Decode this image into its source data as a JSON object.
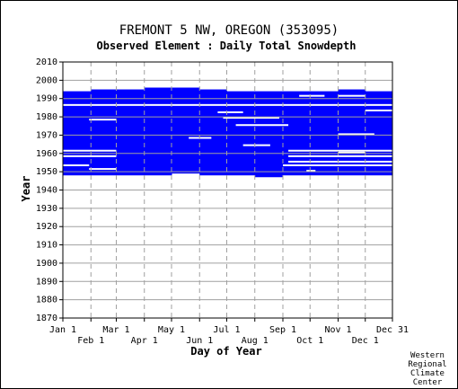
{
  "chart_data": {
    "type": "heatmap",
    "title": "FREMONT 5 NW, OREGON    (353095)",
    "subtitle": "Observed Element : Daily Total Snowdepth",
    "xlabel": "Day of Year",
    "ylabel": "Year",
    "xlim": [
      1,
      365
    ],
    "ylim": [
      1870,
      2010
    ],
    "x_ticks_top_row": [
      {
        "label": "Jan 1",
        "day": 1
      },
      {
        "label": "Mar 1",
        "day": 60
      },
      {
        "label": "May 1",
        "day": 121
      },
      {
        "label": "Jul 1",
        "day": 182
      },
      {
        "label": "Sep 1",
        "day": 244
      },
      {
        "label": "Nov 1",
        "day": 305
      },
      {
        "label": "Dec 31",
        "day": 365
      }
    ],
    "x_ticks_bottom_row": [
      {
        "label": "Feb 1",
        "day": 32
      },
      {
        "label": "Apr 1",
        "day": 91
      },
      {
        "label": "Jun 1",
        "day": 152
      },
      {
        "label": "Aug 1",
        "day": 213
      },
      {
        "label": "Oct 1",
        "day": 274
      },
      {
        "label": "Dec 1",
        "day": 335
      }
    ],
    "y_ticks": [
      1870,
      1880,
      1890,
      1900,
      1910,
      1920,
      1930,
      1940,
      1950,
      1960,
      1970,
      1980,
      1990,
      2000,
      2010
    ],
    "grid": true,
    "data_color": "#0000ff",
    "coverage": [
      {
        "start_day": 1,
        "end_day": 32,
        "year_start": 1948,
        "year_end": 1994
      },
      {
        "start_day": 32,
        "end_day": 60,
        "year_start": 1948,
        "year_end": 1995
      },
      {
        "start_day": 60,
        "end_day": 91,
        "year_start": 1948,
        "year_end": 1995
      },
      {
        "start_day": 91,
        "end_day": 121,
        "year_start": 1948,
        "year_end": 1996
      },
      {
        "start_day": 121,
        "end_day": 152,
        "year_start": 1949,
        "year_end": 1996
      },
      {
        "start_day": 152,
        "end_day": 182,
        "year_start": 1948,
        "year_end": 1995
      },
      {
        "start_day": 182,
        "end_day": 213,
        "year_start": 1948,
        "year_end": 1994
      },
      {
        "start_day": 213,
        "end_day": 244,
        "year_start": 1947,
        "year_end": 1994
      },
      {
        "start_day": 244,
        "end_day": 274,
        "year_start": 1948,
        "year_end": 1994
      },
      {
        "start_day": 274,
        "end_day": 305,
        "year_start": 1948,
        "year_end": 1994
      },
      {
        "start_day": 305,
        "end_day": 335,
        "year_start": 1948,
        "year_end": 1995
      },
      {
        "start_day": 335,
        "end_day": 365,
        "year_start": 1948,
        "year_end": 1994
      }
    ],
    "gaps": [
      {
        "year": 1986,
        "start_day": 1,
        "end_day": 365
      },
      {
        "year": 1978,
        "start_day": 30,
        "end_day": 60
      },
      {
        "year": 1968,
        "start_day": 140,
        "end_day": 165
      },
      {
        "year": 1975,
        "start_day": 192,
        "end_day": 250
      },
      {
        "year": 1979,
        "start_day": 178,
        "end_day": 240
      },
      {
        "year": 1982,
        "start_day": 172,
        "end_day": 200
      },
      {
        "year": 1991,
        "start_day": 262,
        "end_day": 290
      },
      {
        "year": 1964,
        "start_day": 200,
        "end_day": 230
      },
      {
        "year": 1961,
        "start_day": 1,
        "end_day": 60
      },
      {
        "year": 1958,
        "start_day": 1,
        "end_day": 60
      },
      {
        "year": 1953,
        "start_day": 1,
        "end_day": 30
      },
      {
        "year": 1951,
        "start_day": 30,
        "end_day": 60
      },
      {
        "year": 1955,
        "start_day": 250,
        "end_day": 365
      },
      {
        "year": 1958,
        "start_day": 250,
        "end_day": 365
      },
      {
        "year": 1961,
        "start_day": 250,
        "end_day": 365
      },
      {
        "year": 1970,
        "start_day": 305,
        "end_day": 345
      },
      {
        "year": 1960,
        "start_day": 305,
        "end_day": 335
      },
      {
        "year": 1953,
        "start_day": 244,
        "end_day": 365
      },
      {
        "year": 1950,
        "start_day": 270,
        "end_day": 280
      },
      {
        "year": 1983,
        "start_day": 335,
        "end_day": 365
      },
      {
        "year": 1991,
        "start_day": 305,
        "end_day": 335
      }
    ]
  },
  "credit": {
    "line1": "Western",
    "line2": "Regional",
    "line3": "Climate",
    "line4": "Center"
  }
}
